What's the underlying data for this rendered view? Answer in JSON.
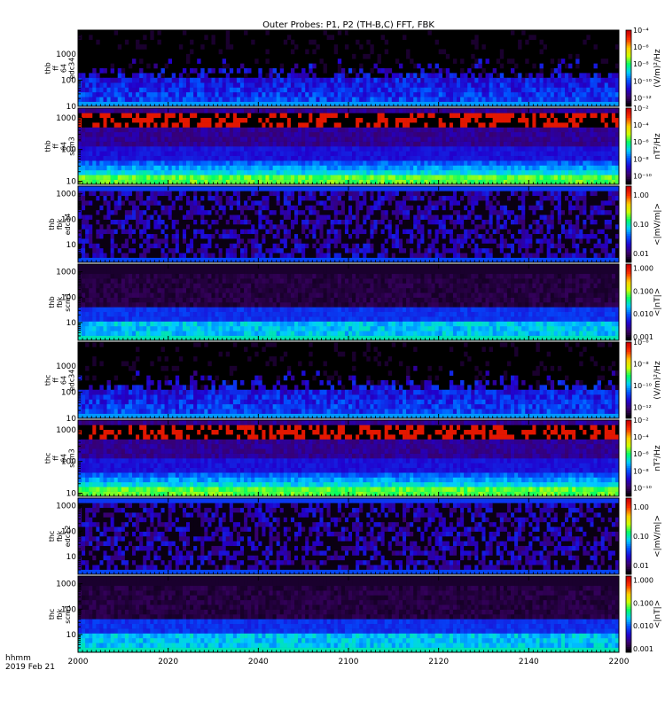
{
  "chart_data": {
    "type": "heatmap",
    "title": "Outer Probes: P1, P2 (TH-B,C) FFT, FBK",
    "xlabel_lines": [
      "hhmm",
      "2019 Feb 21"
    ],
    "x_ticks": [
      "2000",
      "2020",
      "2040",
      "2100",
      "2120",
      "2140",
      "2200"
    ],
    "x_range_hhmm": [
      "2000",
      "2200"
    ],
    "panels": [
      {
        "ylabel": [
          "thb",
          "ff",
          "64",
          "edc34"
        ],
        "y_ticks": [
          "10",
          "100",
          "1000"
        ],
        "yscale": "log",
        "yrange": [
          10,
          8000
        ],
        "cbar_label": "(V/m)²/Hz",
        "cbar_ticks": [
          "10⁻¹²",
          "10⁻¹⁰",
          "10⁻⁸",
          "10⁻⁶",
          "10⁻⁴"
        ],
        "cbar_range_exp": [
          -13,
          -4
        ]
      },
      {
        "ylabel": [
          "thb",
          "ff",
          "64",
          "scm3"
        ],
        "y_ticks": [
          "10",
          "100",
          "1000"
        ],
        "yscale": "log",
        "yrange": [
          8,
          2000
        ],
        "cbar_label": "nT²/Hz",
        "cbar_ticks": [
          "10⁻¹⁰",
          "10⁻⁸",
          "10⁻⁶",
          "10⁻⁴",
          "10⁻²"
        ],
        "cbar_range_exp": [
          -11,
          -2
        ]
      },
      {
        "ylabel": [
          "thb",
          "fbk",
          "edc34"
        ],
        "y_ticks": [
          "10",
          "100",
          "1000"
        ],
        "yscale": "log",
        "yrange": [
          2,
          2000
        ],
        "cbar_label": "<|mV/m|>",
        "cbar_ticks": [
          "0.01",
          "0.10",
          "1.00"
        ],
        "cbar_range": [
          0.005,
          2
        ]
      },
      {
        "ylabel": [
          "thb",
          "fbk",
          "scm1"
        ],
        "y_ticks": [
          "10",
          "100",
          "1000"
        ],
        "yscale": "log",
        "yrange": [
          2,
          2000
        ],
        "cbar_label": "<|nT|>",
        "cbar_ticks": [
          "0.001",
          "0.010",
          "0.100",
          "1.000"
        ],
        "cbar_range": [
          0.0007,
          1.5
        ]
      },
      {
        "ylabel": [
          "thc",
          "ff",
          "64",
          "edc34"
        ],
        "y_ticks": [
          "10",
          "100",
          "1000"
        ],
        "yscale": "log",
        "yrange": [
          10,
          8000
        ],
        "cbar_label": "(V/m)²/Hz",
        "cbar_ticks": [
          "10⁻¹²",
          "10⁻¹⁰",
          "10⁻⁸",
          "10⁻⁶"
        ],
        "cbar_range_exp": [
          -13,
          -6
        ]
      },
      {
        "ylabel": [
          "thc",
          "ff",
          "64",
          "scm3"
        ],
        "y_ticks": [
          "10",
          "100",
          "1000"
        ],
        "yscale": "log",
        "yrange": [
          8,
          2000
        ],
        "cbar_label": "nT²/Hz",
        "cbar_ticks": [
          "10⁻¹⁰",
          "10⁻⁸",
          "10⁻⁶",
          "10⁻⁴",
          "10⁻²"
        ],
        "cbar_range_exp": [
          -11,
          -2
        ]
      },
      {
        "ylabel": [
          "thc",
          "fbk",
          "edc12"
        ],
        "y_ticks": [
          "10",
          "100",
          "1000"
        ],
        "yscale": "log",
        "yrange": [
          2,
          2000
        ],
        "cbar_label": "<|mV/m|>",
        "cbar_ticks": [
          "0.01",
          "0.10",
          "1.00"
        ],
        "cbar_range": [
          0.005,
          2
        ]
      },
      {
        "ylabel": [
          "thc",
          "fbk",
          "scm1"
        ],
        "y_ticks": [
          "10",
          "100",
          "1000"
        ],
        "yscale": "log",
        "yrange": [
          2,
          2000
        ],
        "cbar_label": "<|nT|>",
        "cbar_ticks": [
          "0.001",
          "0.010",
          "0.100",
          "1.000"
        ],
        "cbar_range": [
          0.0007,
          1.5
        ]
      }
    ],
    "colormap": [
      "#000000",
      "#3a0066",
      "#2200cc",
      "#0050ff",
      "#00ccff",
      "#00ff66",
      "#ccff00",
      "#ffcc00",
      "#ff3300",
      "#cc0000"
    ]
  }
}
